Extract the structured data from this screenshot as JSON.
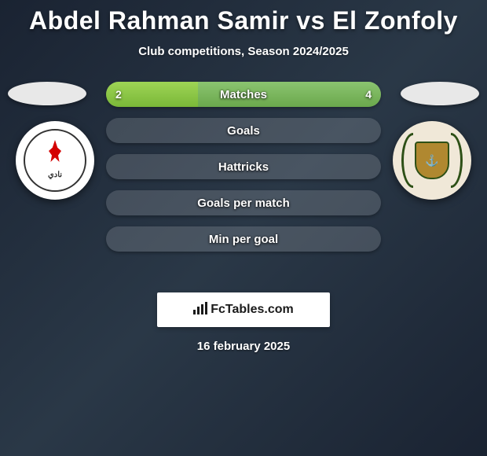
{
  "header": {
    "title": "Abdel Rahman Samir vs El Zonfoly",
    "subtitle": "Club competitions, Season 2024/2025"
  },
  "comparison": {
    "type": "horizontal-split-bar",
    "bar_color_left": "#8cc63f",
    "bar_color_right": "#7ab04a",
    "bar_empty_color": "rgba(255,255,255,0.15)",
    "label_color": "#ffffff",
    "label_fontsize": 15,
    "value_fontsize": 14,
    "rows": [
      {
        "label": "Matches",
        "left_value": "2",
        "right_value": "4",
        "left_pct": 33.3,
        "right_pct": 66.7
      },
      {
        "label": "Goals",
        "left_value": "",
        "right_value": "",
        "left_pct": 0,
        "right_pct": 0
      },
      {
        "label": "Hattricks",
        "left_value": "",
        "right_value": "",
        "left_pct": 0,
        "right_pct": 0
      },
      {
        "label": "Goals per match",
        "left_value": "",
        "right_value": "",
        "left_pct": 0,
        "right_pct": 0
      },
      {
        "label": "Min per goal",
        "left_value": "",
        "right_value": "",
        "left_pct": 0,
        "right_pct": 0
      }
    ]
  },
  "clubs": {
    "left": {
      "name_label": "نادي"
    },
    "right": {
      "shield_symbol": "⚓"
    }
  },
  "branding": {
    "site_label": "FcTables.com"
  },
  "footer": {
    "date": "16 february 2025"
  },
  "theme": {
    "background_gradient_start": "#1a2332",
    "background_gradient_end": "#2a3847",
    "title_color": "#ffffff",
    "title_fontsize": 32
  }
}
